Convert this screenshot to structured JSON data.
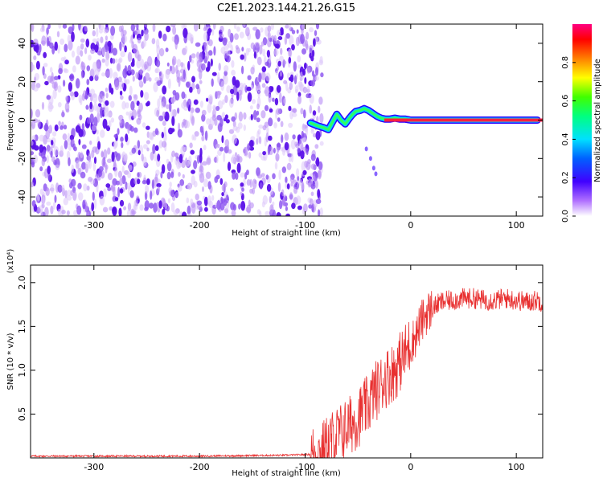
{
  "chart_data": [
    {
      "type": "heatmap",
      "title": "C2E1.2023.144.21.26.G15",
      "xlabel": "Height of straight line (km)",
      "ylabel": "Frequency (Hz)",
      "xlim": [
        -360,
        125
      ],
      "ylim": [
        -50,
        50
      ],
      "xticks": [
        -300,
        -200,
        -100,
        0,
        100
      ],
      "yticks": [
        -40,
        -20,
        0,
        20,
        40
      ],
      "noise_region_x": [
        -360,
        -90
      ],
      "signal_trace": {
        "x": [
          -95,
          -88,
          -82,
          -78,
          -74,
          -70,
          -66,
          -62,
          -58,
          -55,
          -52,
          -48,
          -44,
          -40,
          -36,
          -32,
          -28,
          -24,
          -20,
          -15,
          -10,
          -5,
          0,
          10,
          20,
          30,
          40,
          50,
          60,
          70,
          80,
          90,
          100,
          110,
          120
        ],
        "y": [
          -1.5,
          -3,
          -4,
          -5,
          -1,
          3,
          0,
          -2,
          1,
          3,
          4.5,
          5,
          6,
          5,
          3.5,
          2,
          1,
          0.5,
          0.5,
          1,
          0.5,
          0.5,
          0,
          0,
          0,
          0,
          0,
          0,
          0,
          0,
          0,
          0,
          0,
          0,
          0
        ]
      },
      "colorbar": {
        "label": "Normalized spectral amplitude",
        "range": [
          0.0,
          1.0
        ],
        "ticks": [
          0.0,
          0.2,
          0.4,
          0.6,
          0.8
        ]
      }
    },
    {
      "type": "line",
      "xlabel": "Height of straight line (km)",
      "ylabel": "SNR (10 * v/v)",
      "yscale_note": "(x10⁴)",
      "xlim": [
        -360,
        125
      ],
      "ylim": [
        0,
        2.2
      ],
      "xticks": [
        -300,
        -200,
        -100,
        0,
        100
      ],
      "yticks": [
        0.5,
        1.0,
        1.5,
        2.0
      ],
      "line_color": "#e83030",
      "series": [
        {
          "x": [
            -360,
            -300,
            -200,
            -120,
            -95,
            -85,
            -75,
            -60,
            -50,
            -45,
            -40,
            -35,
            -30,
            -25,
            -20,
            -15,
            -10,
            -5,
            0,
            5,
            10,
            15,
            20,
            25,
            30,
            40,
            50,
            60,
            70,
            80,
            90,
            100,
            110,
            120,
            125
          ],
          "y": [
            0.02,
            0.02,
            0.02,
            0.03,
            0.04,
            0.06,
            0.2,
            0.35,
            0.45,
            0.55,
            0.6,
            0.75,
            0.8,
            0.9,
            0.95,
            1.0,
            1.1,
            1.2,
            1.3,
            1.4,
            1.55,
            1.65,
            1.7,
            1.75,
            1.78,
            1.8,
            1.82,
            1.82,
            1.8,
            1.8,
            1.82,
            1.8,
            1.78,
            1.8,
            1.78
          ]
        }
      ]
    }
  ]
}
